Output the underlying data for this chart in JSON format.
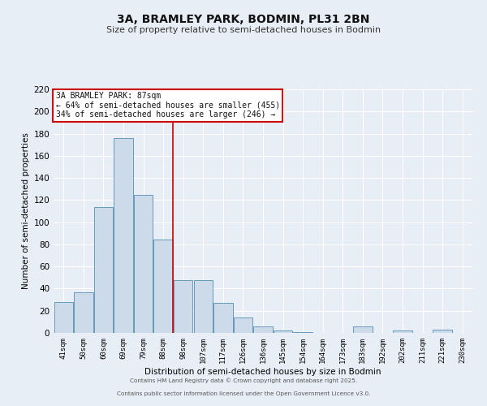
{
  "title": "3A, BRAMLEY PARK, BODMIN, PL31 2BN",
  "subtitle": "Size of property relative to semi-detached houses in Bodmin",
  "xlabel": "Distribution of semi-detached houses by size in Bodmin",
  "ylabel": "Number of semi-detached properties",
  "categories": [
    "41sqm",
    "50sqm",
    "60sqm",
    "69sqm",
    "79sqm",
    "88sqm",
    "98sqm",
    "107sqm",
    "117sqm",
    "126sqm",
    "136sqm",
    "145sqm",
    "154sqm",
    "164sqm",
    "173sqm",
    "183sqm",
    "192sqm",
    "202sqm",
    "211sqm",
    "221sqm",
    "230sqm"
  ],
  "values": [
    28,
    37,
    114,
    176,
    125,
    84,
    48,
    48,
    27,
    14,
    6,
    2,
    1,
    0,
    0,
    6,
    0,
    2,
    0,
    3,
    0
  ],
  "bar_color": "#ccdaea",
  "bar_edge_color": "#6699bb",
  "vline_x": 5.5,
  "vline_color": "#cc0000",
  "annotation_title": "3A BRAMLEY PARK: 87sqm",
  "annotation_line1": "← 64% of semi-detached houses are smaller (455)",
  "annotation_line2": "34% of semi-detached houses are larger (246) →",
  "annotation_box_color": "#ffffff",
  "annotation_box_edge": "#cc0000",
  "ylim": [
    0,
    220
  ],
  "yticks": [
    0,
    20,
    40,
    60,
    80,
    100,
    120,
    140,
    160,
    180,
    200,
    220
  ],
  "bg_color": "#e8eef5",
  "grid_color": "#ffffff",
  "footer1": "Contains HM Land Registry data © Crown copyright and database right 2025.",
  "footer2": "Contains public sector information licensed under the Open Government Licence v3.0."
}
